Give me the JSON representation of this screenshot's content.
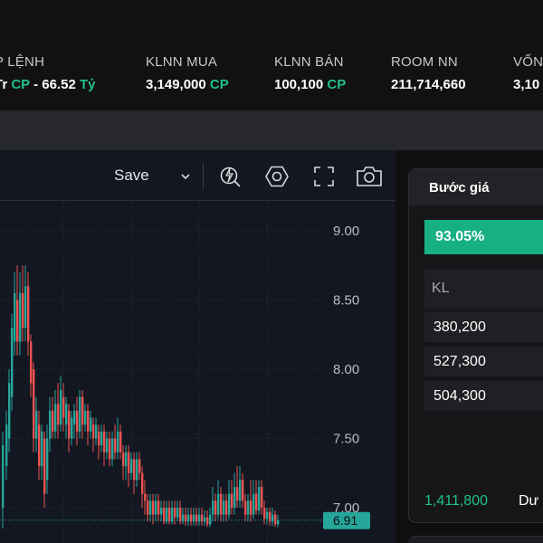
{
  "stats": [
    {
      "label": "P LỆNH",
      "value_prefix": "Tr ",
      "value_cp": "CP",
      "value_mid": " - 66.52 ",
      "value_unit": "Tỷ"
    },
    {
      "label": "KLNN MUA",
      "value_prefix": "3,149,000 ",
      "value_cp": "CP",
      "value_mid": "",
      "value_unit": ""
    },
    {
      "label": "KLNN BÁN",
      "value_prefix": "100,100 ",
      "value_cp": "CP",
      "value_mid": "",
      "value_unit": ""
    },
    {
      "label": "ROOM NN",
      "value_prefix": "211,714,660",
      "value_cp": "",
      "value_mid": "",
      "value_unit": ""
    },
    {
      "label": "VỐN",
      "value_prefix": "3,10",
      "value_cp": "",
      "value_mid": "",
      "value_unit": ""
    }
  ],
  "toolbar": {
    "save_label": "Save",
    "icons": [
      "chevron-down-icon",
      "lightning-zoom-icon",
      "settings-hexagon-icon",
      "fullscreen-icon",
      "camera-icon"
    ]
  },
  "chart_data": {
    "type": "candlestick",
    "price_axis": {
      "ticks": [
        "9.00",
        "8.50",
        "8.00",
        "7.50",
        "7.00"
      ],
      "range": [
        6.85,
        9.05
      ]
    },
    "last_price_label": "6.91",
    "colors": {
      "up": "#26a69a",
      "down": "#ef5350",
      "background": "#131722",
      "grid": "#252a36"
    }
  },
  "order_panel": {
    "header": "Bước giá",
    "percent": "93.05%",
    "kl_header": "KL",
    "rows": [
      "380,200",
      "527,300",
      "504,300"
    ],
    "footer_value": "1,411,800",
    "footer_label": "Dư"
  }
}
